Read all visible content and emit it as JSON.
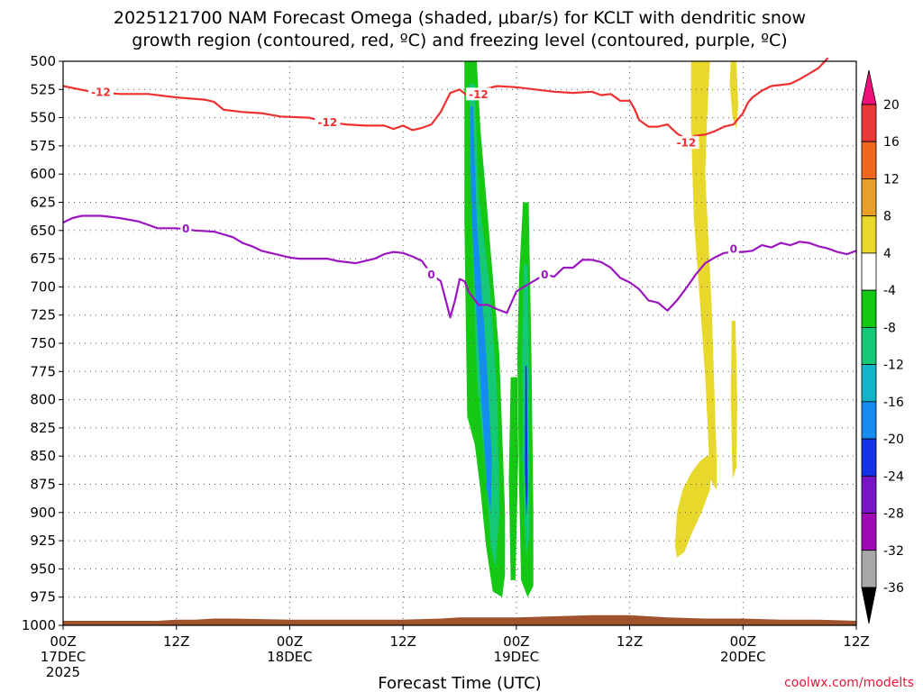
{
  "chart_data": {
    "type": "heatmap",
    "title_lines": [
      "2025121700 NAM Forecast Omega (shaded, μbar/s) for KCLT with dendritic snow",
      "growth region (contoured, red, ºC) and freezing level (contoured, purple, ºC)"
    ],
    "xlabel": "Forecast Time (UTC)",
    "credit": "coolwx.com/modelts",
    "x_range_hours": [
      0,
      84
    ],
    "y_range_hpa": [
      500,
      1000
    ],
    "y_ticks": [
      500,
      525,
      550,
      575,
      600,
      625,
      650,
      675,
      700,
      725,
      750,
      775,
      800,
      825,
      850,
      875,
      900,
      925,
      950,
      975,
      1000
    ],
    "x_ticks": [
      {
        "hour": 0,
        "lines": [
          "00Z",
          "17DEC",
          "2025"
        ]
      },
      {
        "hour": 12,
        "lines": [
          "12Z"
        ]
      },
      {
        "hour": 24,
        "lines": [
          "00Z",
          "18DEC"
        ]
      },
      {
        "hour": 36,
        "lines": [
          "12Z"
        ]
      },
      {
        "hour": 48,
        "lines": [
          "00Z",
          "19DEC"
        ]
      },
      {
        "hour": 60,
        "lines": [
          "12Z"
        ]
      },
      {
        "hour": 72,
        "lines": [
          "00Z",
          "20DEC"
        ]
      },
      {
        "hour": 84,
        "lines": [
          "12Z"
        ]
      }
    ],
    "colorbar": {
      "labels": [
        "20",
        "16",
        "12",
        "8",
        "4",
        "-4",
        "-8",
        "-12",
        "-16",
        "-20",
        "-24",
        "-28",
        "-32",
        "-36"
      ],
      "colors_top_to_bottom": [
        "#f0107a",
        "#e83838",
        "#f0681e",
        "#e8a02a",
        "#e8d82c",
        "#ffffff",
        "#14c814",
        "#14c878",
        "#14b4c8",
        "#148cf0",
        "#1432e6",
        "#7814c8",
        "#a00ab4",
        "#a8a8a8",
        "#000000"
      ]
    },
    "series": [
      {
        "name": "-12 C isotherm (dendritic growth)",
        "color": "#ee3030",
        "label": "-12",
        "label_points": [
          [
            4,
            527
          ],
          [
            28,
            554
          ],
          [
            44,
            529
          ],
          [
            66,
            572
          ]
        ],
        "points": [
          [
            0,
            522
          ],
          [
            3,
            527
          ],
          [
            6,
            529
          ],
          [
            9,
            529
          ],
          [
            12,
            532
          ],
          [
            15,
            534
          ],
          [
            16,
            536
          ],
          [
            17,
            543
          ],
          [
            19,
            545
          ],
          [
            21,
            546
          ],
          [
            23,
            549
          ],
          [
            26,
            550
          ],
          [
            28,
            554
          ],
          [
            30,
            556
          ],
          [
            32,
            557
          ],
          [
            34,
            557
          ],
          [
            35,
            560
          ],
          [
            36,
            557
          ],
          [
            37,
            561
          ],
          [
            38,
            559
          ],
          [
            39,
            556
          ],
          [
            40,
            545
          ],
          [
            41,
            528
          ],
          [
            42,
            525
          ],
          [
            43,
            532
          ],
          [
            44,
            526
          ],
          [
            45,
            524
          ],
          [
            46,
            522
          ],
          [
            48,
            523
          ],
          [
            50,
            525
          ],
          [
            52,
            527
          ],
          [
            54,
            528
          ],
          [
            56,
            527
          ],
          [
            57,
            530
          ],
          [
            58,
            529
          ],
          [
            59,
            535
          ],
          [
            60,
            535
          ],
          [
            60.5,
            542
          ],
          [
            61,
            552
          ],
          [
            62,
            558
          ],
          [
            63,
            558
          ],
          [
            64,
            556
          ],
          [
            65,
            564
          ],
          [
            66,
            569
          ],
          [
            67,
            566
          ],
          [
            68,
            565
          ],
          [
            69,
            562
          ],
          [
            70,
            558
          ],
          [
            71,
            556
          ],
          [
            72,
            546
          ],
          [
            72.5,
            537
          ],
          [
            73,
            532
          ],
          [
            74,
            526
          ],
          [
            75,
            522
          ],
          [
            77,
            520
          ],
          [
            78,
            516
          ],
          [
            79,
            511
          ],
          [
            80,
            506
          ],
          [
            81,
            497
          ]
        ]
      },
      {
        "name": "0 C isotherm (freezing level)",
        "color": "#9b16c0",
        "label": "0",
        "label_points": [
          [
            13,
            648
          ],
          [
            39,
            689
          ],
          [
            51,
            689
          ],
          [
            71,
            666
          ]
        ],
        "points": [
          [
            0,
            643
          ],
          [
            1,
            639
          ],
          [
            2,
            637
          ],
          [
            4,
            637
          ],
          [
            6,
            639
          ],
          [
            8,
            642
          ],
          [
            9,
            645
          ],
          [
            10,
            648
          ],
          [
            12,
            648
          ],
          [
            14,
            650
          ],
          [
            16,
            651
          ],
          [
            18,
            656
          ],
          [
            19,
            661
          ],
          [
            20,
            664
          ],
          [
            21,
            668
          ],
          [
            22,
            670
          ],
          [
            23,
            672
          ],
          [
            24,
            674
          ],
          [
            25,
            675
          ],
          [
            26,
            675
          ],
          [
            27,
            675
          ],
          [
            28,
            675
          ],
          [
            29,
            677
          ],
          [
            30,
            678
          ],
          [
            31,
            679
          ],
          [
            32,
            677
          ],
          [
            33,
            675
          ],
          [
            34,
            671
          ],
          [
            35,
            669
          ],
          [
            36,
            670
          ],
          [
            37,
            673
          ],
          [
            38,
            677
          ],
          [
            39,
            689
          ],
          [
            40,
            695
          ],
          [
            40.5,
            711
          ],
          [
            41,
            727
          ],
          [
            41.5,
            712
          ],
          [
            42,
            693
          ],
          [
            42.5,
            695
          ],
          [
            43,
            705
          ],
          [
            44,
            716
          ],
          [
            45,
            716
          ],
          [
            46,
            720
          ],
          [
            47,
            723
          ],
          [
            48,
            704
          ],
          [
            49,
            699
          ],
          [
            50,
            694
          ],
          [
            51,
            689
          ],
          [
            52,
            691
          ],
          [
            53,
            683
          ],
          [
            54,
            683
          ],
          [
            55,
            676
          ],
          [
            56,
            676
          ],
          [
            57,
            678
          ],
          [
            58,
            683
          ],
          [
            59,
            692
          ],
          [
            60,
            696
          ],
          [
            61,
            702
          ],
          [
            62,
            712
          ],
          [
            63,
            714
          ],
          [
            64,
            721
          ],
          [
            65,
            712
          ],
          [
            66,
            701
          ],
          [
            67,
            689
          ],
          [
            68,
            679
          ],
          [
            69,
            674
          ],
          [
            70,
            670
          ],
          [
            71,
            669
          ],
          [
            72,
            669
          ],
          [
            73,
            668
          ],
          [
            74,
            663
          ],
          [
            75,
            665
          ],
          [
            76,
            661
          ],
          [
            77,
            663
          ],
          [
            78,
            660
          ],
          [
            79,
            661
          ],
          [
            80,
            664
          ],
          [
            81,
            666
          ],
          [
            82,
            669
          ],
          [
            83,
            671
          ],
          [
            84,
            668
          ]
        ]
      }
    ],
    "shaded_regions": [
      {
        "name": "upward motion core A",
        "value": -8,
        "color": "#14c814",
        "poly": [
          [
            42.5,
            500
          ],
          [
            43.8,
            500
          ],
          [
            44.2,
            560
          ],
          [
            45,
            640
          ],
          [
            46.2,
            760
          ],
          [
            46.8,
            900
          ],
          [
            46.8,
            955
          ],
          [
            46.5,
            975
          ],
          [
            45.5,
            970
          ],
          [
            44.8,
            930
          ],
          [
            44.2,
            880
          ],
          [
            43.6,
            840
          ],
          [
            42.8,
            815
          ],
          [
            42.7,
            760
          ],
          [
            42.5,
            640
          ]
        ]
      },
      {
        "name": "upward motion core A inner",
        "value": -12,
        "color": "#14c878",
        "poly": [
          [
            43,
            520
          ],
          [
            43.6,
            520
          ],
          [
            44,
            620
          ],
          [
            45.2,
            700
          ],
          [
            46,
            800
          ],
          [
            46.2,
            900
          ],
          [
            45.8,
            950
          ],
          [
            45.3,
            930
          ],
          [
            44.7,
            860
          ],
          [
            43.8,
            780
          ],
          [
            43.5,
            700
          ],
          [
            43.2,
            620
          ]
        ]
      },
      {
        "name": "upward motion core A max",
        "value": -16,
        "color": "#148cf0",
        "poly": [
          [
            43.1,
            540
          ],
          [
            43.4,
            540
          ],
          [
            43.8,
            640
          ],
          [
            44.8,
            760
          ],
          [
            45.4,
            850
          ],
          [
            45.3,
            900
          ],
          [
            44.9,
            880
          ],
          [
            44.3,
            800
          ],
          [
            43.6,
            700
          ],
          [
            43.2,
            620
          ]
        ]
      },
      {
        "name": "upward motion core B",
        "value": -8,
        "color": "#14c814",
        "poly": [
          [
            48.7,
            625
          ],
          [
            49.3,
            625
          ],
          [
            49.6,
            760
          ],
          [
            49.8,
            900
          ],
          [
            49.8,
            965
          ],
          [
            49.2,
            975
          ],
          [
            48.5,
            960
          ],
          [
            48.3,
            880
          ],
          [
            48.1,
            760
          ],
          [
            48.3,
            690
          ]
        ]
      },
      {
        "name": "upward motion core B inner",
        "value": -12,
        "color": "#14c878",
        "poly": [
          [
            48.8,
            680
          ],
          [
            49.2,
            680
          ],
          [
            49.4,
            800
          ],
          [
            49.4,
            920
          ],
          [
            49.0,
            940
          ],
          [
            48.7,
            860
          ],
          [
            48.6,
            760
          ]
        ]
      },
      {
        "name": "upward motion core B max",
        "value": -20,
        "color": "#1432e6",
        "poly": [
          [
            48.95,
            770
          ],
          [
            49.1,
            770
          ],
          [
            49.2,
            880
          ],
          [
            49.05,
            905
          ],
          [
            48.9,
            860
          ]
        ]
      },
      {
        "name": "upward motion streak C",
        "value": -8,
        "color": "#14c814",
        "poly": [
          [
            47.4,
            780
          ],
          [
            48.1,
            780
          ],
          [
            48.2,
            850
          ],
          [
            47.9,
            960
          ],
          [
            47.4,
            960
          ],
          [
            47.2,
            870
          ]
        ]
      },
      {
        "name": "subsidence band D",
        "value": 4,
        "color": "#e8d82c",
        "poly": [
          [
            66.5,
            500
          ],
          [
            68.5,
            500
          ],
          [
            68.2,
            550
          ],
          [
            68,
            600
          ],
          [
            68.3,
            650
          ],
          [
            68.7,
            720
          ],
          [
            69,
            800
          ],
          [
            69.2,
            850
          ],
          [
            69.2,
            880
          ],
          [
            68.5,
            870
          ],
          [
            68.3,
            830
          ],
          [
            68,
            780
          ],
          [
            67.5,
            720
          ],
          [
            66.8,
            640
          ],
          [
            66.5,
            560
          ]
        ]
      },
      {
        "name": "subsidence band E",
        "value": 4,
        "color": "#e8d82c",
        "poly": [
          [
            70.7,
            500
          ],
          [
            71.3,
            500
          ],
          [
            71.5,
            540
          ],
          [
            71.3,
            560
          ],
          [
            70.9,
            550
          ],
          [
            70.6,
            520
          ]
        ]
      },
      {
        "name": "subsidence lobe F",
        "value": 4,
        "color": "#e8d82c",
        "poly": [
          [
            68.1,
            850
          ],
          [
            68.7,
            850
          ],
          [
            68.5,
            880
          ],
          [
            67.6,
            900
          ],
          [
            66.5,
            920
          ],
          [
            65.8,
            935
          ],
          [
            65,
            940
          ],
          [
            64.8,
            930
          ],
          [
            65,
            900
          ],
          [
            65.6,
            880
          ],
          [
            66.5,
            865
          ],
          [
            67.4,
            855
          ]
        ]
      },
      {
        "name": "subsidence streak G",
        "value": 4,
        "color": "#e8d82c",
        "poly": [
          [
            70.8,
            730
          ],
          [
            71.2,
            730
          ],
          [
            71.4,
            800
          ],
          [
            71.3,
            860
          ],
          [
            70.9,
            870
          ],
          [
            70.7,
            800
          ]
        ]
      }
    ],
    "terrain": {
      "name": "surface terrain",
      "color": "#a0522d"
    }
  }
}
